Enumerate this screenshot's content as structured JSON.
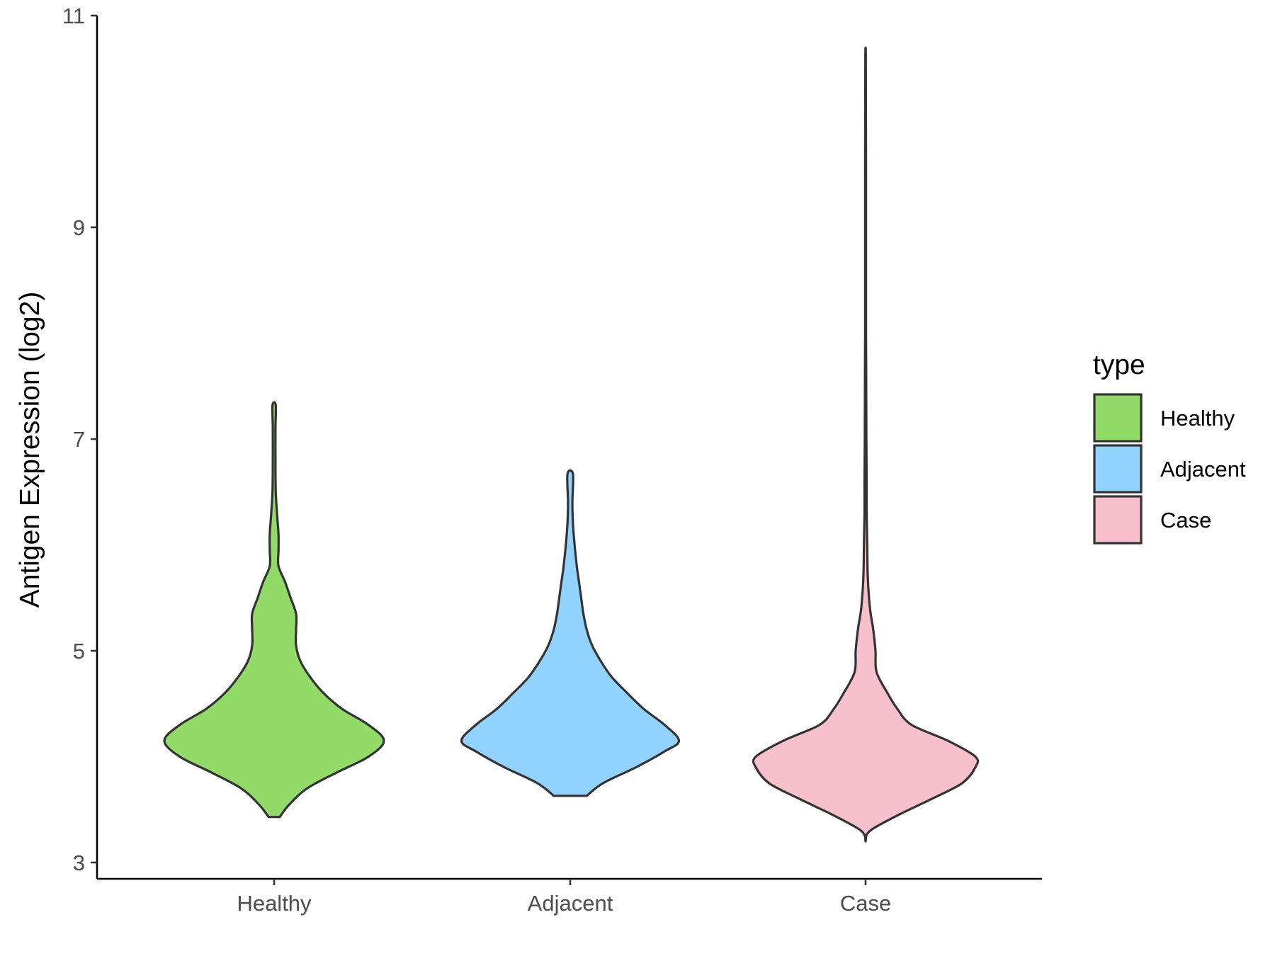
{
  "chart_data": {
    "type": "violin",
    "title": "",
    "xlabel": "",
    "ylabel": "Antigen Expression (log2)",
    "ylim": [
      3,
      11
    ],
    "yticks": [
      3,
      5,
      7,
      9,
      11
    ],
    "ytick_labels": [
      "3",
      "5",
      "7",
      "9",
      "11"
    ],
    "categories": [
      "Healthy",
      "Adjacent",
      "Case"
    ],
    "grid": false,
    "legend": {
      "title": "type",
      "position": "right",
      "entries": [
        "Healthy",
        "Adjacent",
        "Case"
      ]
    },
    "colors": {
      "Healthy": "#93DB69",
      "Adjacent": "#92D2FF",
      "Case": "#F8C0CC",
      "outline": "#333333"
    },
    "series": [
      {
        "name": "Healthy",
        "min": 3.43,
        "max": 7.32,
        "mode": 4.15,
        "density_profile": [
          [
            3.43,
            0.05
          ],
          [
            3.55,
            0.14
          ],
          [
            3.7,
            0.3
          ],
          [
            3.85,
            0.57
          ],
          [
            4.0,
            0.86
          ],
          [
            4.15,
            1.0
          ],
          [
            4.3,
            0.86
          ],
          [
            4.45,
            0.62
          ],
          [
            4.6,
            0.45
          ],
          [
            4.75,
            0.33
          ],
          [
            4.9,
            0.24
          ],
          [
            5.05,
            0.2
          ],
          [
            5.2,
            0.2
          ],
          [
            5.35,
            0.2
          ],
          [
            5.5,
            0.15
          ],
          [
            5.65,
            0.1
          ],
          [
            5.8,
            0.04
          ],
          [
            5.95,
            0.04
          ],
          [
            6.1,
            0.04
          ],
          [
            6.25,
            0.03
          ],
          [
            6.5,
            0.015
          ],
          [
            6.8,
            0.012
          ],
          [
            7.1,
            0.012
          ],
          [
            7.32,
            0.015
          ]
        ]
      },
      {
        "name": "Adjacent",
        "min": 3.63,
        "max": 6.67,
        "mode": 4.15,
        "density_profile": [
          [
            3.63,
            0.15
          ],
          [
            3.75,
            0.3
          ],
          [
            3.9,
            0.6
          ],
          [
            4.05,
            0.86
          ],
          [
            4.15,
            0.99
          ],
          [
            4.3,
            0.86
          ],
          [
            4.45,
            0.67
          ],
          [
            4.6,
            0.52
          ],
          [
            4.75,
            0.38
          ],
          [
            4.9,
            0.28
          ],
          [
            5.05,
            0.2
          ],
          [
            5.2,
            0.15
          ],
          [
            5.35,
            0.12
          ],
          [
            5.5,
            0.1
          ],
          [
            5.65,
            0.08
          ],
          [
            5.8,
            0.06
          ],
          [
            6.0,
            0.04
          ],
          [
            6.2,
            0.025
          ],
          [
            6.4,
            0.02
          ],
          [
            6.67,
            0.025
          ]
        ]
      },
      {
        "name": "Case",
        "min": 3.2,
        "max": 10.62,
        "mode": 4.0,
        "density_profile": [
          [
            3.2,
            0.0
          ],
          [
            3.3,
            0.04
          ],
          [
            3.45,
            0.3
          ],
          [
            3.6,
            0.6
          ],
          [
            3.75,
            0.88
          ],
          [
            3.9,
            1.0
          ],
          [
            4.0,
            1.0
          ],
          [
            4.15,
            0.75
          ],
          [
            4.3,
            0.42
          ],
          [
            4.45,
            0.29
          ],
          [
            4.6,
            0.2
          ],
          [
            4.8,
            0.1
          ],
          [
            5.0,
            0.09
          ],
          [
            5.2,
            0.07
          ],
          [
            5.4,
            0.04
          ],
          [
            5.7,
            0.02
          ],
          [
            6.0,
            0.015
          ],
          [
            6.3,
            0.01
          ],
          [
            6.6,
            0.01
          ],
          [
            7.0,
            0.007
          ],
          [
            7.5,
            0.006
          ],
          [
            8.0,
            0.004
          ],
          [
            9.0,
            0.004
          ],
          [
            9.5,
            0.004
          ],
          [
            10.0,
            0.003
          ],
          [
            10.62,
            0.002
          ]
        ]
      }
    ]
  }
}
